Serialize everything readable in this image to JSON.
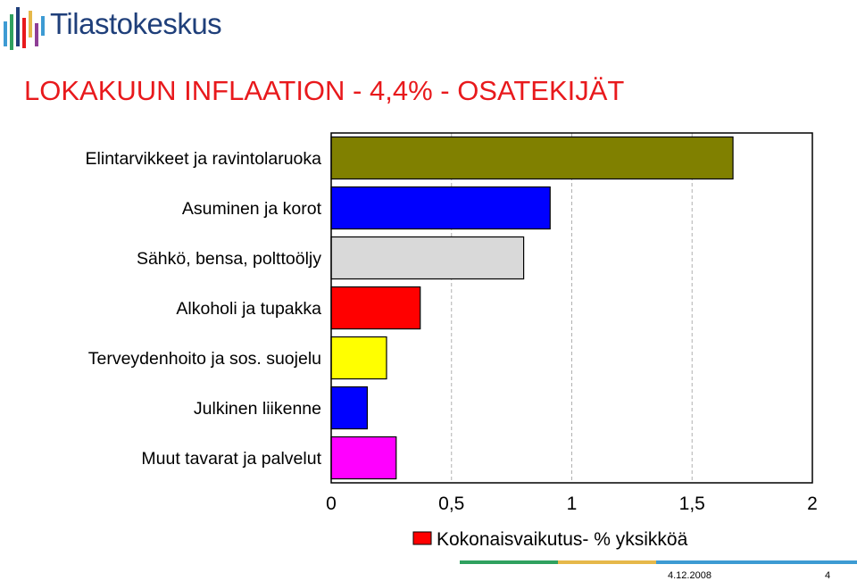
{
  "header": {
    "logo_text": "Tilastokeskus",
    "title": "LOKAKUUN INFLAATION - 4,4% - OSATEKIJÄT"
  },
  "chart_data": {
    "type": "bar",
    "orientation": "horizontal",
    "categories": [
      "Elintarvikkeet ja ravintolaruoka",
      "Asuminen ja korot",
      "Sähkö, bensa, polttoöljy",
      "Alkoholi ja tupakka",
      "Terveydenhoito ja sos. suojelu",
      "Julkinen liikenne",
      "Muut tavarat ja palvelut"
    ],
    "values": [
      1.67,
      0.91,
      0.8,
      0.37,
      0.23,
      0.15,
      0.27
    ],
    "colors": [
      "#808000",
      "#0000ff",
      "#d9d9d9",
      "#ff0000",
      "#ffff00",
      "#0000ff",
      "#ff00ff"
    ],
    "xlim": [
      0,
      2
    ],
    "xticks": [
      "0",
      "0,5",
      "1",
      "1,5",
      "2"
    ],
    "xtick_values": [
      0,
      0.5,
      1,
      1.5,
      2
    ],
    "grid": "vertical dashed",
    "legend": {
      "label": "Kokonaisvaikutus- % yksikköä",
      "color": "#ff0000",
      "position": "bottom"
    }
  },
  "footer": {
    "date": "4.12.2008",
    "page": "4",
    "line_colors": [
      "#2fa15f",
      "#e6b84a",
      "#3d9bd3"
    ]
  }
}
